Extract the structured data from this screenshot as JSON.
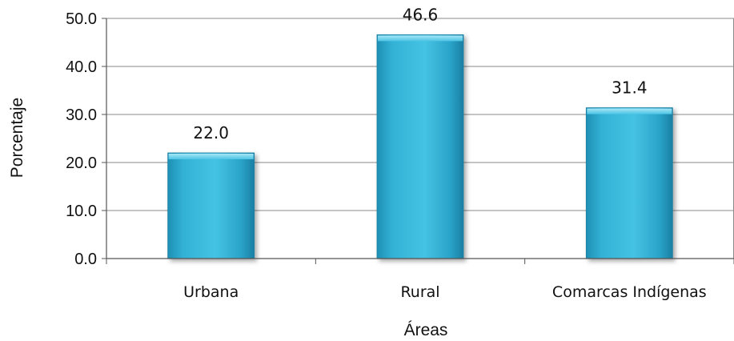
{
  "chart_data": {
    "type": "bar",
    "categories": [
      "Urbana",
      "Rural",
      "Comarcas Indígenas"
    ],
    "values": [
      22.0,
      46.6,
      31.4
    ],
    "data_labels": [
      "22.0",
      "46.6",
      "31.4"
    ],
    "title": "",
    "xlabel": "Áreas",
    "ylabel": "Porcentaje",
    "ylim": [
      0,
      50
    ],
    "yticks": [
      "0.0",
      "10.0",
      "20.0",
      "30.0",
      "40.0",
      "50.0"
    ],
    "grid": true,
    "legend": "none",
    "bar_color": "#3ab8d8"
  }
}
